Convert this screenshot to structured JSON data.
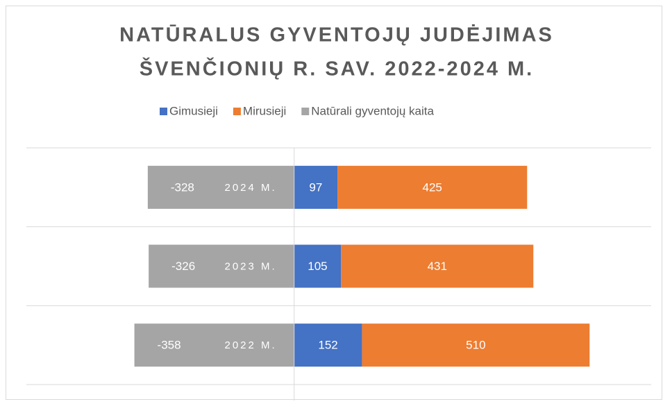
{
  "chart_data": {
    "type": "bar",
    "orientation": "horizontal",
    "stacked": true,
    "title": [
      "NATŪRALUS GYVENTOJŲ JUDĖJIMAS",
      "ŠVENČIONIŲ R. SAV. 2022-2024 M."
    ],
    "categories": [
      "2024 M.",
      "2023 M.",
      "2022 M."
    ],
    "series": [
      {
        "name": "Gimusieji",
        "color": "#4472c4",
        "values": [
          97,
          105,
          152
        ]
      },
      {
        "name": "Mirusieji",
        "color": "#ed7d31",
        "values": [
          425,
          431,
          510
        ]
      },
      {
        "name": "Natūrali gyventojų kaita",
        "color": "#a5a5a5",
        "values": [
          -328,
          -326,
          -358
        ]
      }
    ],
    "xlim": [
      -600,
      800
    ],
    "legend": "top"
  }
}
